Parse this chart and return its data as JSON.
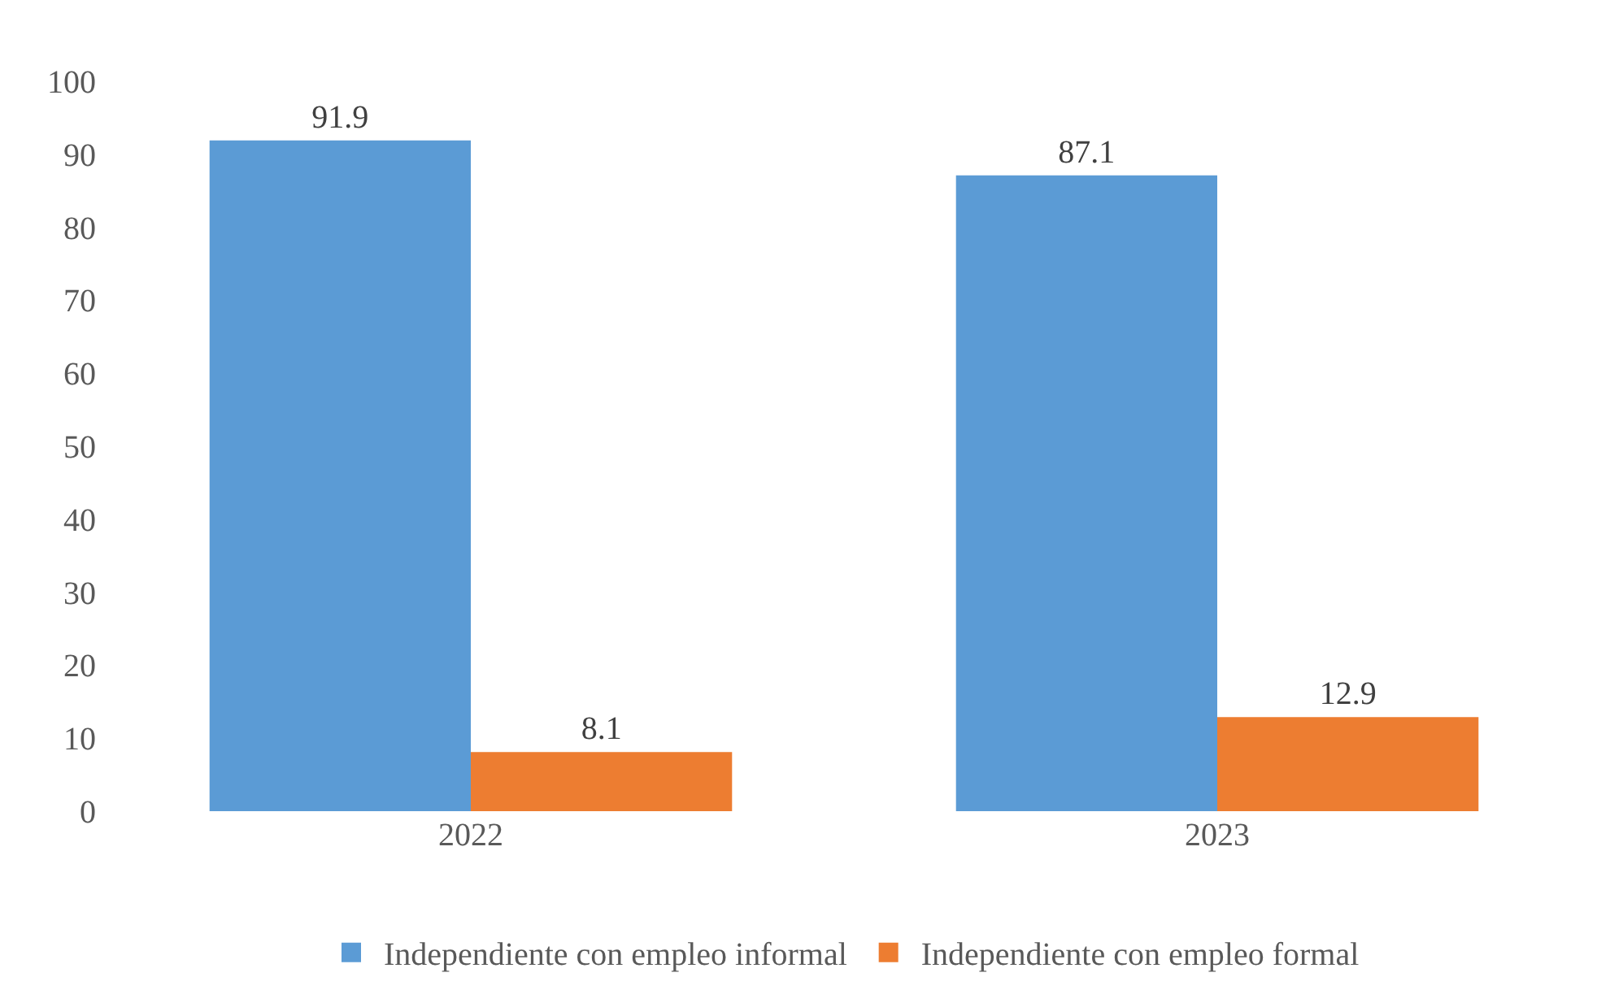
{
  "chart_data": {
    "type": "bar",
    "categories": [
      "2022",
      "2023"
    ],
    "series": [
      {
        "name": "Independiente con empleo informal",
        "color": "#5b9bd5",
        "values": [
          91.9,
          87.1
        ]
      },
      {
        "name": "Independiente con empleo formal",
        "color": "#ed7d31",
        "values": [
          8.1,
          12.9
        ]
      }
    ],
    "ylim": [
      0,
      100
    ],
    "yticks": [
      0,
      10,
      20,
      30,
      40,
      50,
      60,
      70,
      80,
      90,
      100
    ],
    "legend": "bottom",
    "data_labels": true
  }
}
